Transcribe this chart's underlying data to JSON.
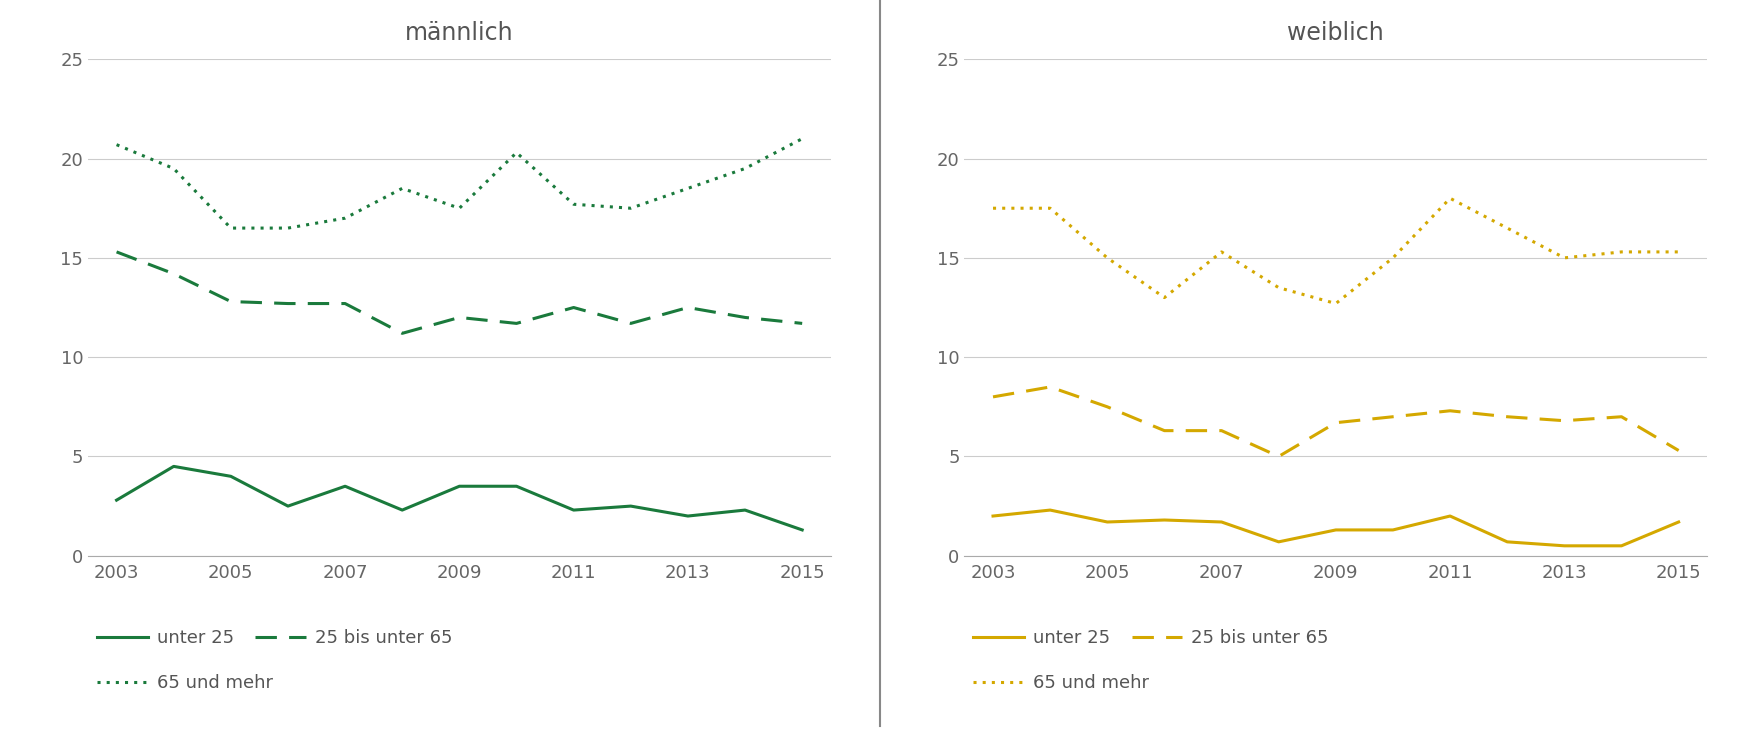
{
  "years": [
    2003,
    2004,
    2005,
    2006,
    2007,
    2008,
    2009,
    2010,
    2011,
    2012,
    2013,
    2014,
    2015
  ],
  "maennlich": {
    "unter25": [
      2.8,
      4.5,
      4.0,
      2.5,
      3.5,
      2.3,
      3.5,
      3.5,
      2.3,
      2.5,
      2.0,
      2.3,
      1.3
    ],
    "mid": [
      15.3,
      14.2,
      12.8,
      12.7,
      12.7,
      11.2,
      12.0,
      11.7,
      12.5,
      11.7,
      12.5,
      12.0,
      11.7
    ],
    "age65plus": [
      20.7,
      19.5,
      16.5,
      16.5,
      17.0,
      18.5,
      17.5,
      20.3,
      17.7,
      17.5,
      18.5,
      19.5,
      21.0
    ]
  },
  "weiblich": {
    "unter25": [
      2.0,
      2.3,
      1.7,
      1.8,
      1.7,
      0.7,
      1.3,
      1.3,
      2.0,
      0.7,
      0.5,
      0.5,
      1.7
    ],
    "mid": [
      8.0,
      8.5,
      7.5,
      6.3,
      6.3,
      5.0,
      6.7,
      7.0,
      7.3,
      7.0,
      6.8,
      7.0,
      5.3
    ],
    "age65plus": [
      17.5,
      17.5,
      15.0,
      13.0,
      15.3,
      13.5,
      12.7,
      15.0,
      18.0,
      16.5,
      15.0,
      15.3,
      15.3
    ]
  },
  "green_color": "#1a7a3c",
  "yellow_color": "#d4a800",
  "title_maennlich": "männlich",
  "title_weiblich": "weiblich",
  "ylim": [
    0,
    25
  ],
  "yticks": [
    0,
    5,
    10,
    15,
    20,
    25
  ],
  "xticks": [
    2003,
    2005,
    2007,
    2009,
    2011,
    2013,
    2015
  ],
  "legend_labels": [
    "unter 25",
    "25 bis unter 65",
    "65 und mehr"
  ],
  "title_fontsize": 17,
  "tick_fontsize": 13,
  "legend_fontsize": 13,
  "line_width": 2.2
}
